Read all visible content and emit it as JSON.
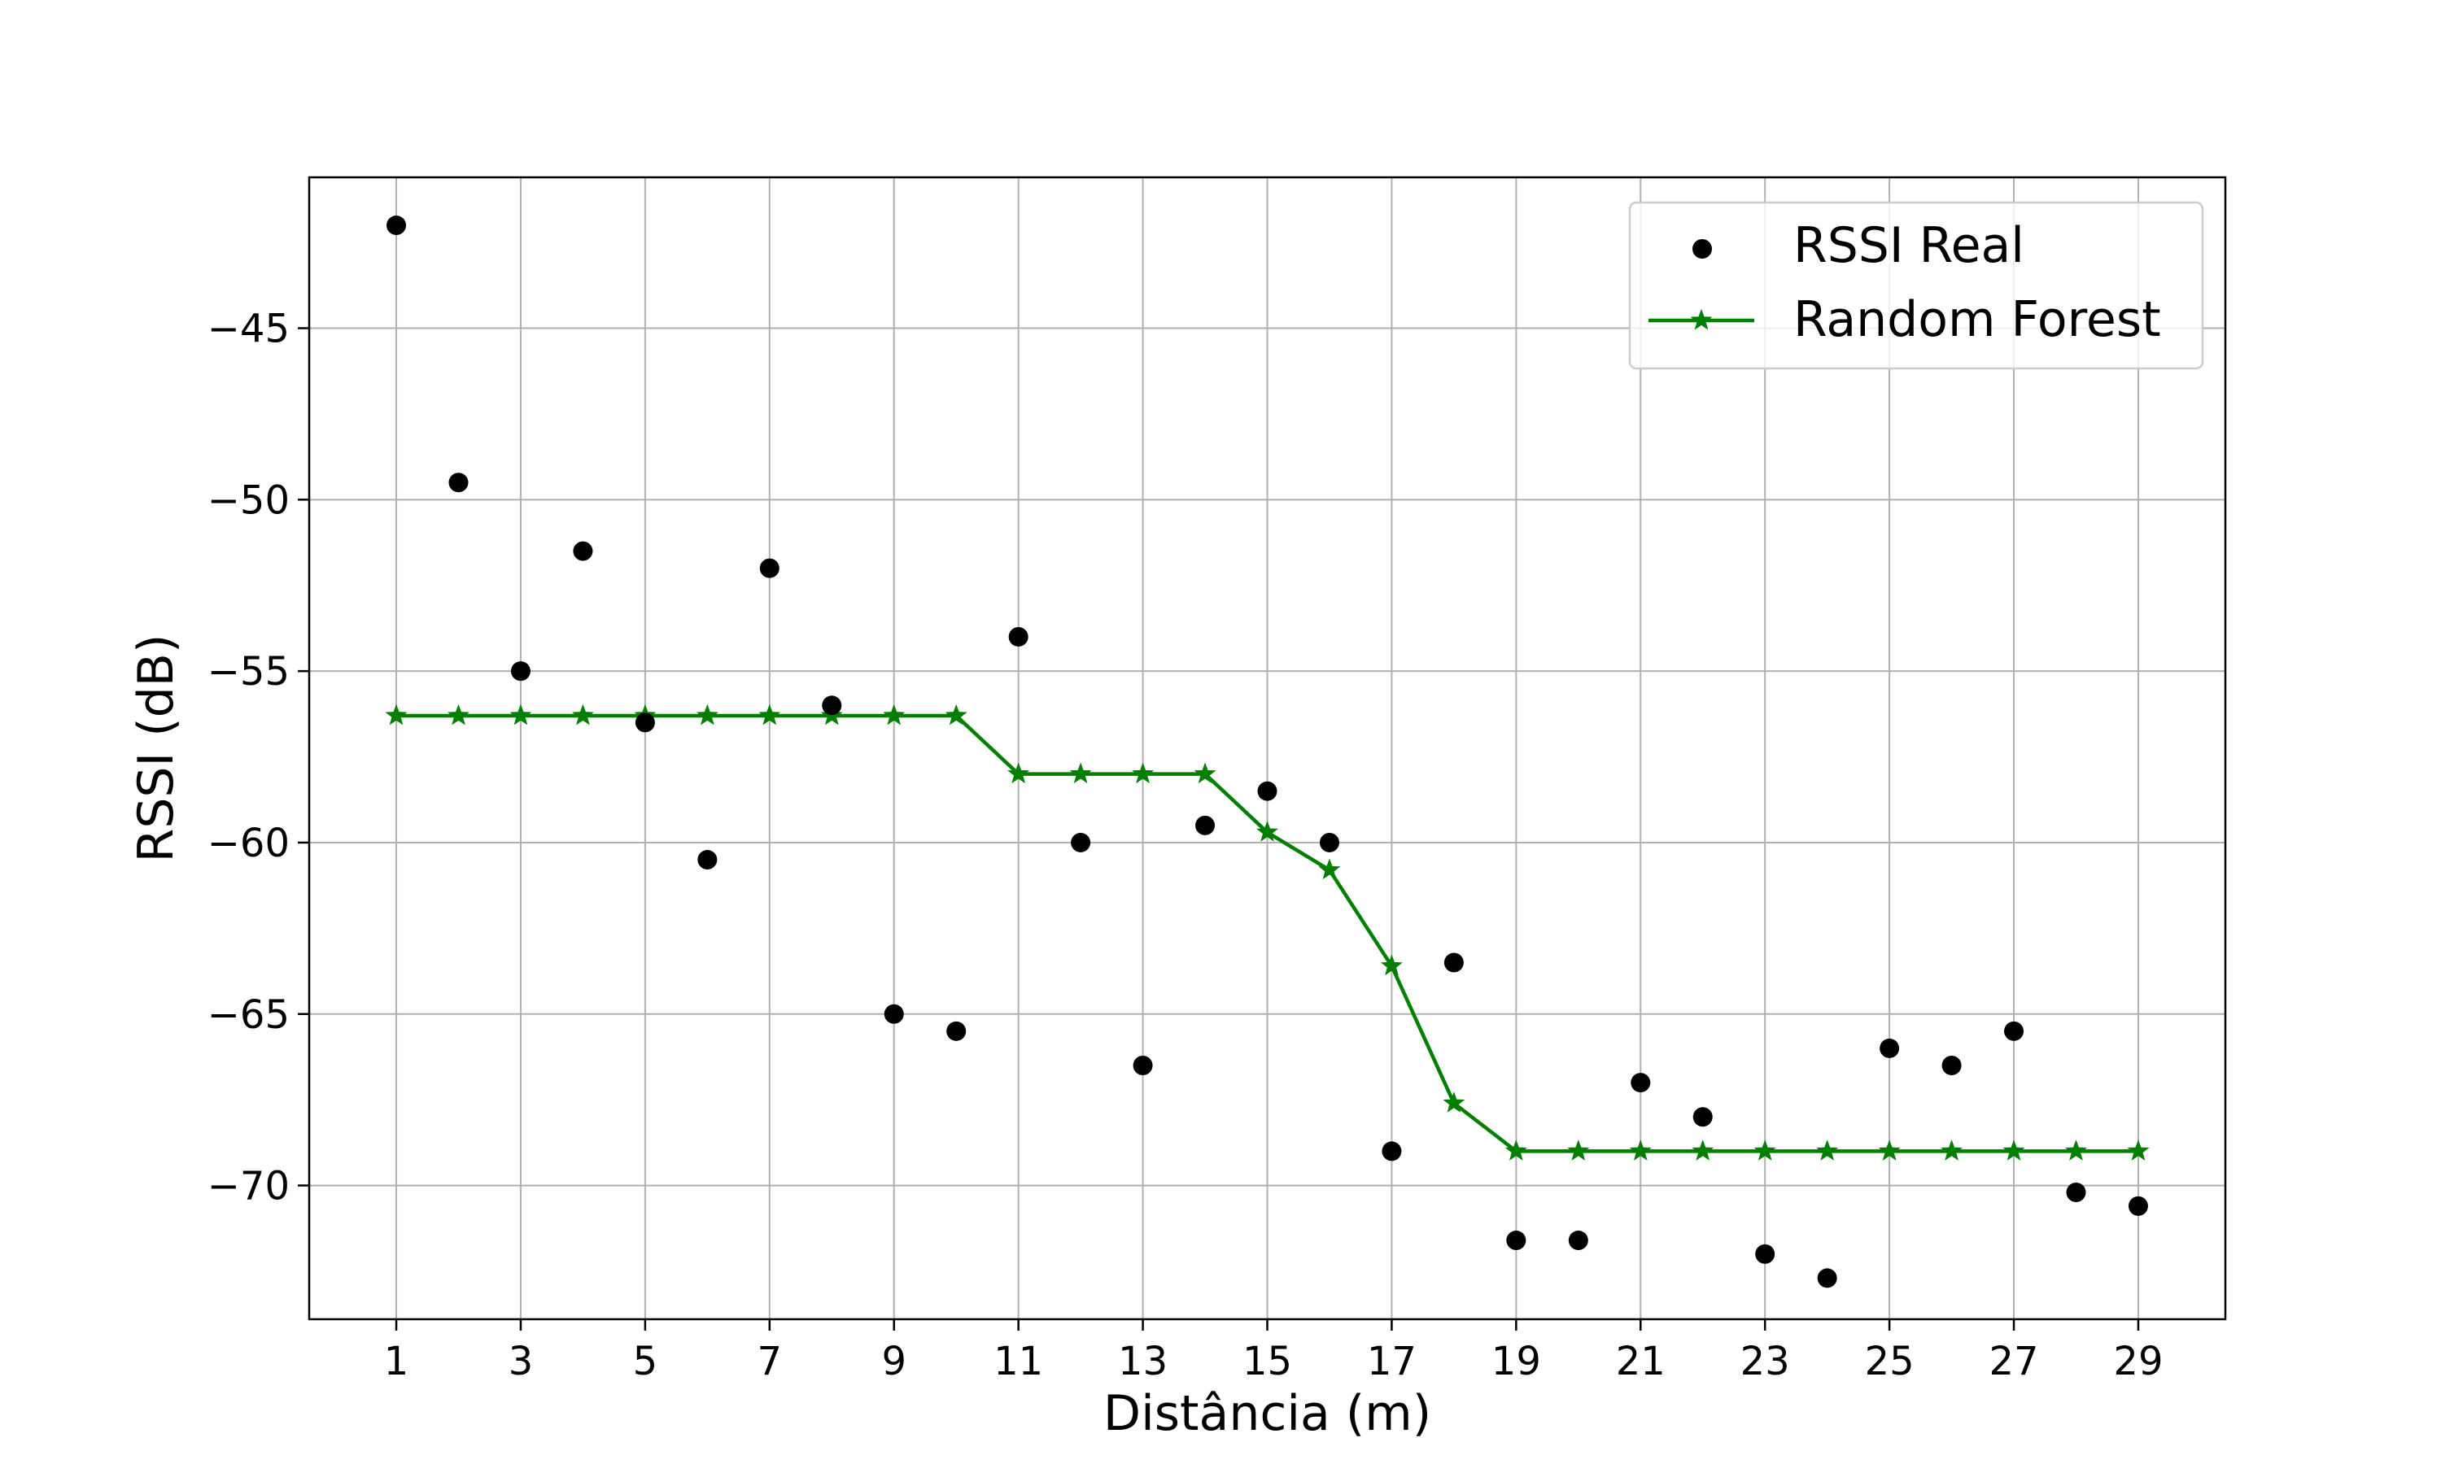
{
  "chart_data": {
    "type": "scatter",
    "xlabel": "Distância (m)",
    "ylabel": "RSSI (dB)",
    "xlim": [
      -0.4,
      30.4
    ],
    "ylim": [
      -73.9,
      -40.6
    ],
    "xticks": [
      1,
      3,
      5,
      7,
      9,
      11,
      13,
      15,
      17,
      19,
      21,
      23,
      25,
      27,
      29
    ],
    "xtick_labels": [
      "1",
      "3",
      "5",
      "7",
      "9",
      "11",
      "13",
      "15",
      "17",
      "19",
      "21",
      "23",
      "25",
      "27",
      "29"
    ],
    "yticks": [
      -45,
      -50,
      -55,
      -60,
      -65,
      -70
    ],
    "ytick_labels": [
      "−45",
      "−50",
      "−55",
      "−60",
      "−65",
      "−70"
    ],
    "grid": true,
    "legend_position": "upper right",
    "series": [
      {
        "name": "RSSI Real",
        "kind": "scatter",
        "marker": "circle",
        "color": "#000000",
        "x": [
          1,
          2,
          3,
          4,
          5,
          6,
          7,
          8,
          9,
          10,
          11,
          12,
          13,
          14,
          15,
          16,
          17,
          18,
          19,
          20,
          21,
          22,
          23,
          24,
          25,
          26,
          27,
          28,
          29
        ],
        "y": [
          -42,
          -49.5,
          -55,
          -51.5,
          -56.5,
          -60.5,
          -52,
          -56,
          -65,
          -65.5,
          -54,
          -60,
          -66.5,
          -59.5,
          -58.5,
          -60,
          -69,
          -63.5,
          -71.6,
          -71.6,
          -67,
          -68,
          -72,
          -72.7,
          -66,
          -66.5,
          -65.5,
          -70.2,
          -70.6
        ]
      },
      {
        "name": "Random Forest",
        "kind": "line",
        "marker": "star",
        "color": "#007f00",
        "x": [
          1,
          2,
          3,
          4,
          5,
          6,
          7,
          8,
          9,
          10,
          11,
          12,
          13,
          14,
          15,
          16,
          17,
          18,
          19,
          20,
          21,
          22,
          23,
          24,
          25,
          26,
          27,
          28,
          29
        ],
        "y": [
          -56.3,
          -56.3,
          -56.3,
          -56.3,
          -56.3,
          -56.3,
          -56.3,
          -56.3,
          -56.3,
          -56.3,
          -58,
          -58,
          -58,
          -58,
          -59.7,
          -60.8,
          -63.6,
          -67.6,
          -69,
          -69,
          -69,
          -69,
          -69,
          -69,
          -69,
          -69,
          -69,
          -69,
          -69
        ]
      }
    ]
  }
}
